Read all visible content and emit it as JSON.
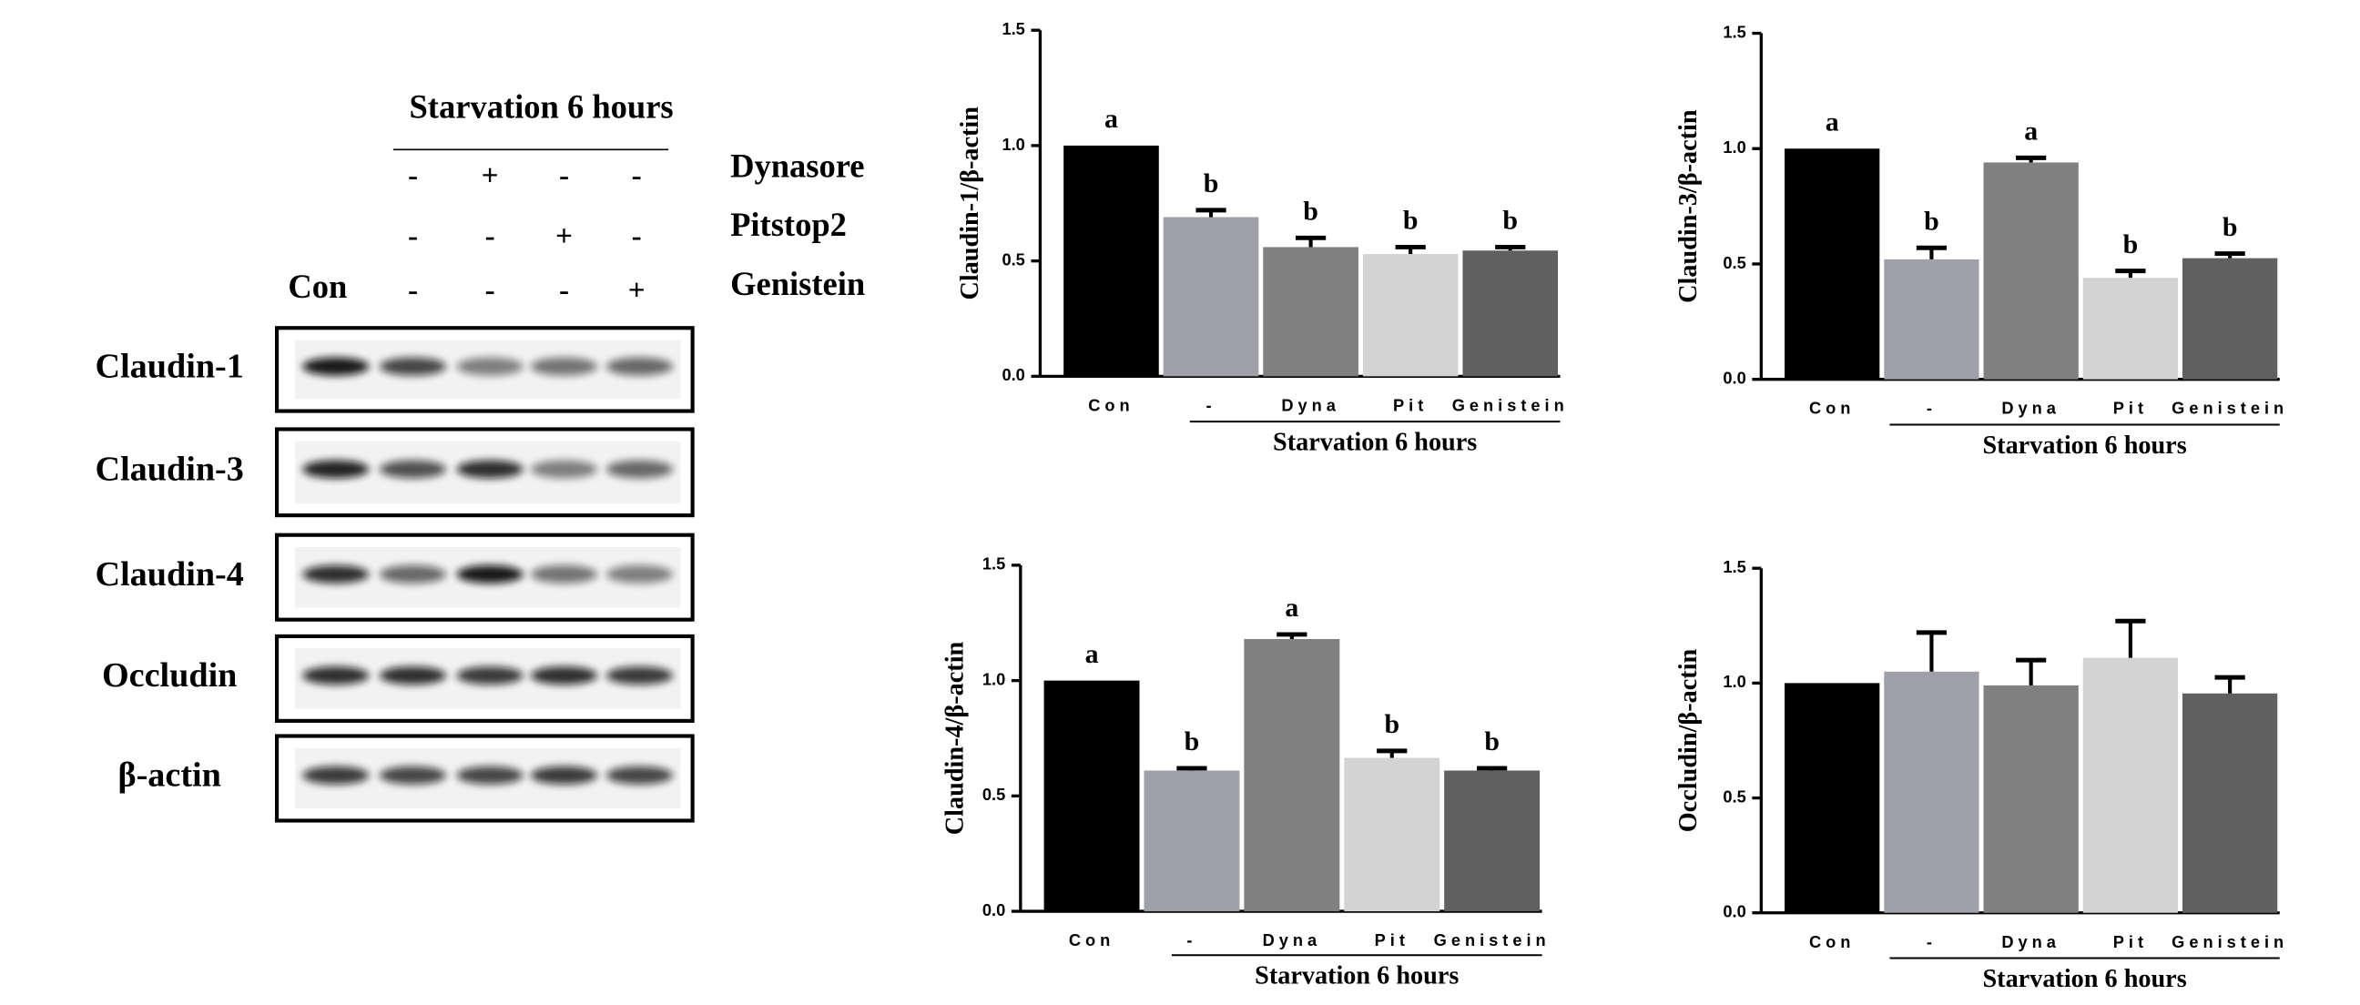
{
  "blot": {
    "header": "Starvation 6 hours",
    "con": "Con",
    "treatments": [
      {
        "name": "Dynasore",
        "signs": [
          "-",
          "+",
          "-",
          "-"
        ]
      },
      {
        "name": "Pitstop2",
        "signs": [
          "-",
          "-",
          "+",
          "-"
        ]
      },
      {
        "name": "Genistein",
        "signs": [
          "-",
          "-",
          "-",
          "+"
        ]
      }
    ],
    "proteins": [
      "Claudin-1",
      "Claudin-3",
      "Claudin-4",
      "Occludin",
      "β-actin"
    ]
  },
  "chart_data": [
    {
      "type": "bar",
      "ylabel": "Claudin-1/β-actin",
      "group_label": "Starvation 6 hours",
      "categories": [
        "Con",
        "-",
        "Dyna",
        "Pit",
        "Genistein"
      ],
      "values": [
        1.0,
        0.69,
        0.56,
        0.53,
        0.545
      ],
      "errors": [
        0,
        0.03,
        0.04,
        0.03,
        0.015
      ],
      "letters": [
        "a",
        "b",
        "b",
        "b",
        "b"
      ],
      "colors": [
        "#000000",
        "#a0a0a8",
        "#808080",
        "#d3d3d3",
        "#606060"
      ],
      "ylim": [
        0,
        1.5
      ],
      "yticks": [
        {
          "value": 0,
          "label": "0.0"
        },
        {
          "value": 0.5,
          "label": "0.5"
        },
        {
          "value": 1,
          "label": "1.0"
        },
        {
          "value": 1.5,
          "label": "1.5"
        }
      ]
    },
    {
      "type": "bar",
      "ylabel": "Claudin-3/β-actin",
      "group_label": "Starvation 6 hours",
      "categories": [
        "Con",
        "-",
        "Dyna",
        "Pit",
        "Genistein"
      ],
      "values": [
        1.0,
        0.52,
        0.94,
        0.44,
        0.525
      ],
      "errors": [
        0,
        0.05,
        0.02,
        0.03,
        0.02
      ],
      "letters": [
        "a",
        "b",
        "a",
        "b",
        "b"
      ],
      "colors": [
        "#000000",
        "#a0a0a8",
        "#808080",
        "#d3d3d3",
        "#606060"
      ],
      "ylim": [
        0,
        1.5
      ],
      "yticks": [
        {
          "value": 0,
          "label": "0.0"
        },
        {
          "value": 0.5,
          "label": "0.5"
        },
        {
          "value": 1,
          "label": "1.0"
        },
        {
          "value": 1.5,
          "label": "1.5"
        }
      ]
    },
    {
      "type": "bar",
      "ylabel": "Claudin-4/β-actin",
      "group_label": "Starvation 6 hours",
      "categories": [
        "Con",
        "-",
        "Dyna",
        "Pit",
        "Genistein"
      ],
      "values": [
        1.0,
        0.61,
        1.18,
        0.665,
        0.61
      ],
      "errors": [
        0,
        0.01,
        0.02,
        0.03,
        0.01
      ],
      "letters": [
        "a",
        "b",
        "a",
        "b",
        "b"
      ],
      "colors": [
        "#000000",
        "#a0a0a8",
        "#808080",
        "#d3d3d3",
        "#606060"
      ],
      "ylim": [
        0,
        1.5
      ],
      "yticks": [
        {
          "value": 0,
          "label": "0.0"
        },
        {
          "value": 0.5,
          "label": "0.5"
        },
        {
          "value": 1,
          "label": "1.0"
        },
        {
          "value": 1.5,
          "label": "1.5"
        }
      ]
    },
    {
      "type": "bar",
      "ylabel": "Occludin/β-actin",
      "group_label": "Starvation 6 hours",
      "categories": [
        "Con",
        "-",
        "Dyna",
        "Pit",
        "Genistein"
      ],
      "values": [
        1.0,
        1.05,
        0.99,
        1.11,
        0.955
      ],
      "errors": [
        0,
        0.17,
        0.11,
        0.16,
        0.07
      ],
      "colors": [
        "#000000",
        "#a0a0a8",
        "#808080",
        "#d3d3d3",
        "#606060"
      ],
      "ylim": [
        0,
        1.5
      ],
      "yticks": [
        {
          "value": 0,
          "label": "0.0"
        },
        {
          "value": 0.5,
          "label": "0.5"
        },
        {
          "value": 1,
          "label": "1.0"
        },
        {
          "value": 1.5,
          "label": "1.5"
        }
      ]
    }
  ]
}
